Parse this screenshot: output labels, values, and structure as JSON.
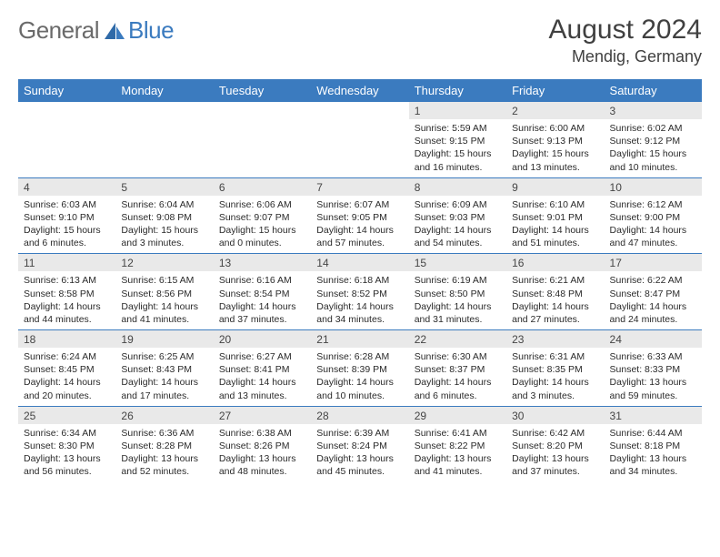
{
  "brand": {
    "word1": "General",
    "word2": "Blue"
  },
  "title": "August 2024",
  "location": "Mendig, Germany",
  "colors": {
    "header_bg": "#3b7bbf",
    "header_text": "#ffffff",
    "daynum_bg": "#e9e9e9",
    "text": "#2a2a2a",
    "rule": "#3b7bbf"
  },
  "day_labels": [
    "Sunday",
    "Monday",
    "Tuesday",
    "Wednesday",
    "Thursday",
    "Friday",
    "Saturday"
  ],
  "weeks": [
    {
      "nums": [
        "",
        "",
        "",
        "",
        "1",
        "2",
        "3"
      ],
      "cells": [
        null,
        null,
        null,
        null,
        {
          "sr": "Sunrise: 5:59 AM",
          "ss": "Sunset: 9:15 PM",
          "dl1": "Daylight: 15 hours",
          "dl2": "and 16 minutes."
        },
        {
          "sr": "Sunrise: 6:00 AM",
          "ss": "Sunset: 9:13 PM",
          "dl1": "Daylight: 15 hours",
          "dl2": "and 13 minutes."
        },
        {
          "sr": "Sunrise: 6:02 AM",
          "ss": "Sunset: 9:12 PM",
          "dl1": "Daylight: 15 hours",
          "dl2": "and 10 minutes."
        }
      ]
    },
    {
      "nums": [
        "4",
        "5",
        "6",
        "7",
        "8",
        "9",
        "10"
      ],
      "cells": [
        {
          "sr": "Sunrise: 6:03 AM",
          "ss": "Sunset: 9:10 PM",
          "dl1": "Daylight: 15 hours",
          "dl2": "and 6 minutes."
        },
        {
          "sr": "Sunrise: 6:04 AM",
          "ss": "Sunset: 9:08 PM",
          "dl1": "Daylight: 15 hours",
          "dl2": "and 3 minutes."
        },
        {
          "sr": "Sunrise: 6:06 AM",
          "ss": "Sunset: 9:07 PM",
          "dl1": "Daylight: 15 hours",
          "dl2": "and 0 minutes."
        },
        {
          "sr": "Sunrise: 6:07 AM",
          "ss": "Sunset: 9:05 PM",
          "dl1": "Daylight: 14 hours",
          "dl2": "and 57 minutes."
        },
        {
          "sr": "Sunrise: 6:09 AM",
          "ss": "Sunset: 9:03 PM",
          "dl1": "Daylight: 14 hours",
          "dl2": "and 54 minutes."
        },
        {
          "sr": "Sunrise: 6:10 AM",
          "ss": "Sunset: 9:01 PM",
          "dl1": "Daylight: 14 hours",
          "dl2": "and 51 minutes."
        },
        {
          "sr": "Sunrise: 6:12 AM",
          "ss": "Sunset: 9:00 PM",
          "dl1": "Daylight: 14 hours",
          "dl2": "and 47 minutes."
        }
      ]
    },
    {
      "nums": [
        "11",
        "12",
        "13",
        "14",
        "15",
        "16",
        "17"
      ],
      "cells": [
        {
          "sr": "Sunrise: 6:13 AM",
          "ss": "Sunset: 8:58 PM",
          "dl1": "Daylight: 14 hours",
          "dl2": "and 44 minutes."
        },
        {
          "sr": "Sunrise: 6:15 AM",
          "ss": "Sunset: 8:56 PM",
          "dl1": "Daylight: 14 hours",
          "dl2": "and 41 minutes."
        },
        {
          "sr": "Sunrise: 6:16 AM",
          "ss": "Sunset: 8:54 PM",
          "dl1": "Daylight: 14 hours",
          "dl2": "and 37 minutes."
        },
        {
          "sr": "Sunrise: 6:18 AM",
          "ss": "Sunset: 8:52 PM",
          "dl1": "Daylight: 14 hours",
          "dl2": "and 34 minutes."
        },
        {
          "sr": "Sunrise: 6:19 AM",
          "ss": "Sunset: 8:50 PM",
          "dl1": "Daylight: 14 hours",
          "dl2": "and 31 minutes."
        },
        {
          "sr": "Sunrise: 6:21 AM",
          "ss": "Sunset: 8:48 PM",
          "dl1": "Daylight: 14 hours",
          "dl2": "and 27 minutes."
        },
        {
          "sr": "Sunrise: 6:22 AM",
          "ss": "Sunset: 8:47 PM",
          "dl1": "Daylight: 14 hours",
          "dl2": "and 24 minutes."
        }
      ]
    },
    {
      "nums": [
        "18",
        "19",
        "20",
        "21",
        "22",
        "23",
        "24"
      ],
      "cells": [
        {
          "sr": "Sunrise: 6:24 AM",
          "ss": "Sunset: 8:45 PM",
          "dl1": "Daylight: 14 hours",
          "dl2": "and 20 minutes."
        },
        {
          "sr": "Sunrise: 6:25 AM",
          "ss": "Sunset: 8:43 PM",
          "dl1": "Daylight: 14 hours",
          "dl2": "and 17 minutes."
        },
        {
          "sr": "Sunrise: 6:27 AM",
          "ss": "Sunset: 8:41 PM",
          "dl1": "Daylight: 14 hours",
          "dl2": "and 13 minutes."
        },
        {
          "sr": "Sunrise: 6:28 AM",
          "ss": "Sunset: 8:39 PM",
          "dl1": "Daylight: 14 hours",
          "dl2": "and 10 minutes."
        },
        {
          "sr": "Sunrise: 6:30 AM",
          "ss": "Sunset: 8:37 PM",
          "dl1": "Daylight: 14 hours",
          "dl2": "and 6 minutes."
        },
        {
          "sr": "Sunrise: 6:31 AM",
          "ss": "Sunset: 8:35 PM",
          "dl1": "Daylight: 14 hours",
          "dl2": "and 3 minutes."
        },
        {
          "sr": "Sunrise: 6:33 AM",
          "ss": "Sunset: 8:33 PM",
          "dl1": "Daylight: 13 hours",
          "dl2": "and 59 minutes."
        }
      ]
    },
    {
      "nums": [
        "25",
        "26",
        "27",
        "28",
        "29",
        "30",
        "31"
      ],
      "cells": [
        {
          "sr": "Sunrise: 6:34 AM",
          "ss": "Sunset: 8:30 PM",
          "dl1": "Daylight: 13 hours",
          "dl2": "and 56 minutes."
        },
        {
          "sr": "Sunrise: 6:36 AM",
          "ss": "Sunset: 8:28 PM",
          "dl1": "Daylight: 13 hours",
          "dl2": "and 52 minutes."
        },
        {
          "sr": "Sunrise: 6:38 AM",
          "ss": "Sunset: 8:26 PM",
          "dl1": "Daylight: 13 hours",
          "dl2": "and 48 minutes."
        },
        {
          "sr": "Sunrise: 6:39 AM",
          "ss": "Sunset: 8:24 PM",
          "dl1": "Daylight: 13 hours",
          "dl2": "and 45 minutes."
        },
        {
          "sr": "Sunrise: 6:41 AM",
          "ss": "Sunset: 8:22 PM",
          "dl1": "Daylight: 13 hours",
          "dl2": "and 41 minutes."
        },
        {
          "sr": "Sunrise: 6:42 AM",
          "ss": "Sunset: 8:20 PM",
          "dl1": "Daylight: 13 hours",
          "dl2": "and 37 minutes."
        },
        {
          "sr": "Sunrise: 6:44 AM",
          "ss": "Sunset: 8:18 PM",
          "dl1": "Daylight: 13 hours",
          "dl2": "and 34 minutes."
        }
      ]
    }
  ]
}
